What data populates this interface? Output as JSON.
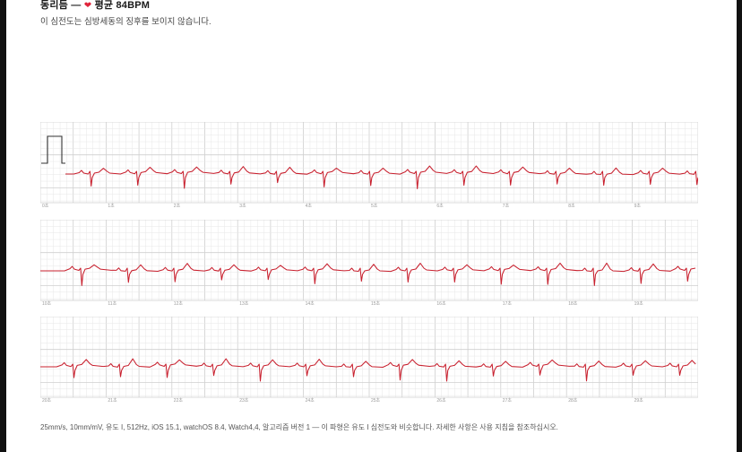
{
  "header": {
    "rhythm": "동리듬",
    "dash": "—",
    "average_label": "평균",
    "bpm": "84BPM",
    "description": "이 심전도는 심방세동의 징후를 보이지 않습니다."
  },
  "strips": [
    {
      "ticks": [
        "0초",
        "1초",
        "2초",
        "3초",
        "4초",
        "5초",
        "6초",
        "7초",
        "8초",
        "9초"
      ]
    },
    {
      "ticks": [
        "10초",
        "11초",
        "12초",
        "13초",
        "14초",
        "15초",
        "16초",
        "17초",
        "18초",
        "19초"
      ]
    },
    {
      "ticks": [
        "20초",
        "21초",
        "22초",
        "23초",
        "24초",
        "25초",
        "26초",
        "27초",
        "28초",
        "29초"
      ]
    }
  ],
  "footer": "25mm/s, 10mm/mV, 유도 I, 512Hz, iOS 15.1, watchOS 8.4, Watch4,4, 알고리즘 버전 1 — 이 파형은 유도 I 심전도와 비슷합니다. 자세한 사항은 사용 지침을 참조하십시오.",
  "colors": {
    "trace": "#c8202e",
    "grid_minor": "#e7e7e7",
    "grid_major": "#cfcfcf",
    "heart": "#e0243a"
  }
}
